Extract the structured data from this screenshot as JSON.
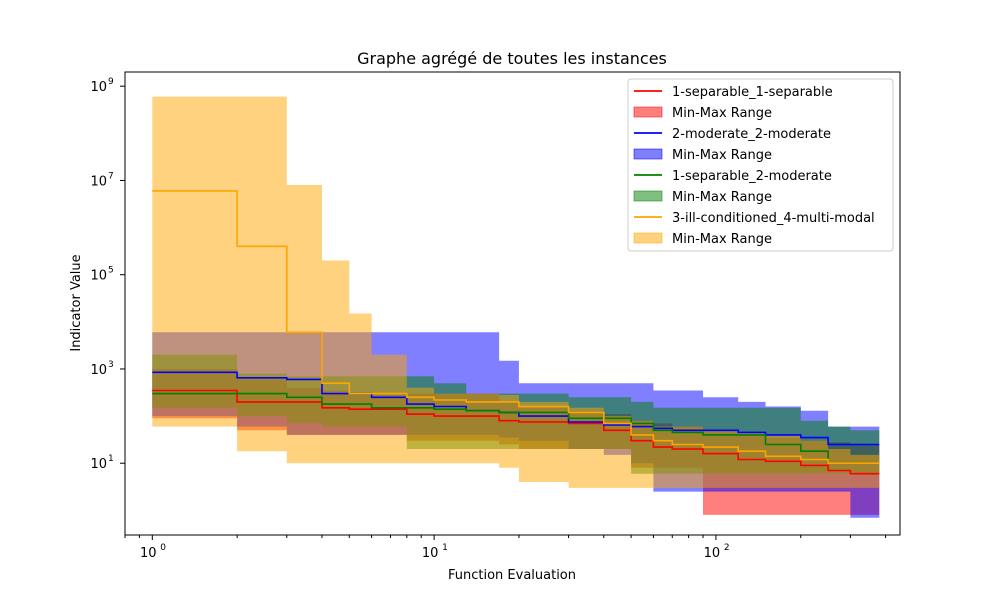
{
  "chart_data": {
    "type": "line",
    "title": "Graphe agrégé de toutes les instances",
    "xlabel": "Function Evaluation",
    "ylabel": "Indicator Value",
    "xscale": "log",
    "yscale": "log",
    "xlim": [
      0.8,
      450
    ],
    "ylim": [
      0.3,
      2000000000
    ],
    "x_ticks": [
      1,
      10,
      100
    ],
    "x_tick_labels": [
      "10",
      "10",
      "10"
    ],
    "x_tick_exponents": [
      "0",
      "1",
      "2"
    ],
    "y_ticks": [
      10,
      1000,
      100000,
      10000000,
      1000000000
    ],
    "y_tick_labels": [
      "10",
      "10",
      "10",
      "10",
      "10"
    ],
    "y_tick_exponents": [
      "1",
      "3",
      "5",
      "7",
      "9"
    ],
    "legend_position": "upper right",
    "series": [
      {
        "name": "1-separable_1-separable",
        "range_label": "Min-Max Range",
        "color": "#ff0000",
        "x": [
          1,
          2,
          3,
          4,
          5,
          6,
          8,
          10,
          13,
          17,
          20,
          30,
          40,
          50,
          60,
          70,
          90,
          120,
          150,
          200,
          250,
          300,
          380
        ],
        "y": [
          350,
          200,
          200,
          150,
          140,
          140,
          110,
          100,
          100,
          80,
          75,
          70,
          50,
          30,
          22,
          20,
          16,
          12,
          11,
          9,
          7,
          6,
          6
        ],
        "min": [
          90,
          50,
          40,
          40,
          40,
          40,
          30,
          30,
          30,
          25,
          20,
          20,
          20,
          8,
          8,
          8,
          0.8,
          0.8,
          0.8,
          0.8,
          0.8,
          0.8,
          0.8
        ],
        "max": [
          1000,
          600,
          400,
          350,
          300,
          300,
          300,
          300,
          300,
          200,
          150,
          130,
          110,
          80,
          70,
          60,
          50,
          40,
          35,
          30,
          28,
          25,
          25
        ]
      },
      {
        "name": "2-moderate_2-moderate",
        "range_label": "Min-Max Range",
        "color": "#0000ff",
        "x": [
          1,
          2,
          3,
          4,
          5,
          6,
          8,
          10,
          13,
          17,
          20,
          30,
          40,
          50,
          60,
          70,
          90,
          120,
          150,
          200,
          250,
          300,
          380
        ],
        "y": [
          850,
          650,
          600,
          300,
          300,
          250,
          180,
          160,
          130,
          120,
          100,
          75,
          65,
          60,
          55,
          50,
          50,
          45,
          40,
          35,
          25,
          25,
          25
        ],
        "min": [
          100,
          60,
          40,
          40,
          40,
          40,
          40,
          40,
          40,
          35,
          30,
          20,
          15,
          10,
          2.5,
          2.5,
          2.5,
          2.5,
          2.5,
          2.5,
          2.5,
          0.7,
          0.7
        ],
        "max": [
          6000,
          6000,
          6000,
          6000,
          6000,
          6000,
          6000,
          6000,
          6000,
          1500,
          500,
          500,
          500,
          500,
          350,
          350,
          250,
          200,
          160,
          130,
          60,
          60,
          60
        ]
      },
      {
        "name": "1-separable_2-moderate",
        "range_label": "Min-Max Range",
        "color": "#008000",
        "x": [
          1,
          2,
          3,
          4,
          5,
          6,
          8,
          10,
          13,
          17,
          20,
          30,
          40,
          50,
          60,
          70,
          90,
          120,
          150,
          200,
          250,
          300,
          380
        ],
        "y": [
          300,
          300,
          250,
          180,
          180,
          150,
          150,
          140,
          130,
          120,
          120,
          90,
          90,
          70,
          50,
          45,
          40,
          40,
          25,
          18,
          10,
          10,
          10
        ],
        "min": [
          150,
          100,
          70,
          60,
          60,
          60,
          20,
          20,
          20,
          20,
          20,
          20,
          20,
          6,
          6,
          6,
          6,
          6,
          6,
          6,
          6,
          6,
          6
        ],
        "max": [
          2000,
          800,
          700,
          700,
          700,
          700,
          700,
          500,
          300,
          300,
          300,
          250,
          250,
          200,
          150,
          150,
          150,
          150,
          150,
          80,
          60,
          50,
          40
        ]
      },
      {
        "name": "3-ill-conditioned_4-multi-modal",
        "range_label": "Min-Max Range",
        "color": "#ffa500",
        "x": [
          1,
          2,
          3,
          4,
          5,
          6,
          8,
          10,
          13,
          17,
          20,
          30,
          40,
          50,
          60,
          70,
          90,
          120,
          150,
          200,
          250,
          300,
          380
        ],
        "y": [
          6000000,
          400000,
          6000,
          500,
          300,
          300,
          250,
          220,
          200,
          200,
          160,
          120,
          70,
          40,
          30,
          25,
          22,
          18,
          14,
          12,
          10,
          10,
          10
        ],
        "min": [
          60,
          18,
          10,
          10,
          10,
          10,
          10,
          10,
          10,
          8,
          4,
          3,
          3,
          3,
          3,
          3,
          3,
          3,
          3,
          3,
          3,
          3,
          3
        ],
        "max": [
          600000000,
          600000000,
          8000000,
          200000,
          15000,
          2000,
          400,
          300,
          300,
          280,
          200,
          150,
          100,
          80,
          60,
          60,
          50,
          45,
          40,
          30,
          20,
          15,
          15
        ]
      }
    ]
  }
}
